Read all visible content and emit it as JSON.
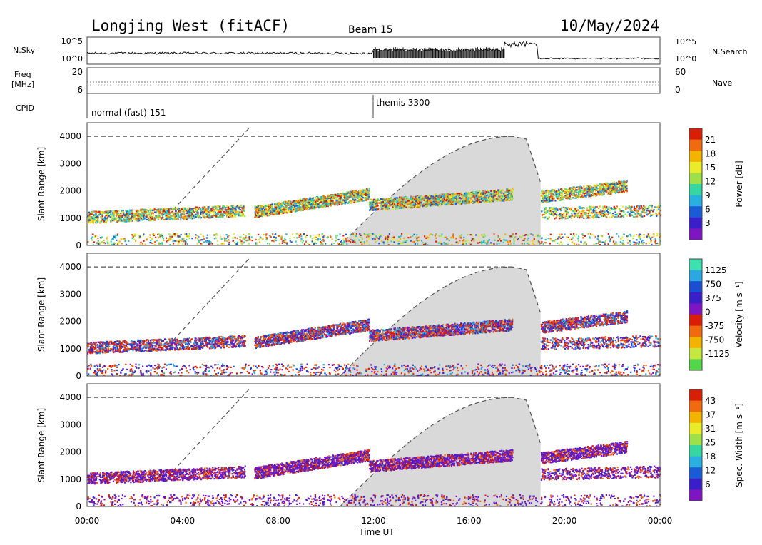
{
  "header": {
    "title": "Longjing West (fitACF)",
    "beam": "Beam 15",
    "date": "10/May/2024"
  },
  "strip": {
    "nsky_label": "N.Sky",
    "nsearch_label": "N.Search",
    "freq_label_line1": "Freq",
    "freq_label_line2": "[MHz]",
    "nave_label": "Nave",
    "cpid_label": "CPID",
    "noise_ticks_left": [
      "10^5",
      "10^0"
    ],
    "noise_ticks_right": [
      "10^5",
      "10^0"
    ],
    "freq_ticks": [
      "20",
      "6"
    ],
    "nave_ticks": [
      "60",
      "0"
    ],
    "cpid_segments": [
      {
        "label": "normal (fast) 151",
        "start_hour": 0
      },
      {
        "label": "themis 3300",
        "start_hour": 11.9
      }
    ]
  },
  "chart_data": [
    {
      "type": "heatmap",
      "name": "power",
      "ylabel": "Slant Range [km]",
      "xlabel": "",
      "ylim": [
        0,
        4500
      ],
      "yticks": [
        "0",
        "1000",
        "2000",
        "3000",
        "4000"
      ],
      "colorbar_label": "Power [dB]",
      "colorbar_ticks": [
        "21",
        "18",
        "15",
        "12",
        "9",
        "6",
        "3"
      ],
      "colorbar_colors": [
        "#d81e05",
        "#f06a10",
        "#f2b400",
        "#e8ec2a",
        "#9ee04a",
        "#36d6a0",
        "#2ab0e0",
        "#1c5bd6",
        "#3a1ec8",
        "#7d16c2"
      ],
      "scatter_color_order": [
        "#d81e05",
        "#f06a10",
        "#f2b400",
        "#e8ec2a",
        "#9ee04a",
        "#36d6a0",
        "#2ab0e0",
        "#1c5bd6"
      ]
    },
    {
      "type": "heatmap",
      "name": "velocity",
      "ylabel": "Slant Range [km]",
      "xlabel": "",
      "ylim": [
        0,
        4500
      ],
      "yticks": [
        "0",
        "1000",
        "2000",
        "3000",
        "4000"
      ],
      "colorbar_label": "Velocity [m s⁻¹]",
      "colorbar_ticks": [
        "1125",
        "750",
        "375",
        "0",
        "-375",
        "-750",
        "-1125"
      ],
      "colorbar_colors": [
        "#3fe0b0",
        "#2aa8e0",
        "#1a4fd0",
        "#3a1ec8",
        "#7d16c2",
        "#d81e05",
        "#f06a10",
        "#f2b400",
        "#c6e640",
        "#53d64a"
      ],
      "scatter_color_order": [
        "#d81e05",
        "#e8340a",
        "#7d16c2",
        "#3a1ec8",
        "#1a4fd0",
        "#2aa8e0",
        "#f06a10"
      ]
    },
    {
      "type": "heatmap",
      "name": "spectral_width",
      "ylabel": "Slant Range [km]",
      "xlabel": "Time UT",
      "ylim": [
        0,
        4500
      ],
      "yticks": [
        "0",
        "1000",
        "2000",
        "3000",
        "4000"
      ],
      "xticks": [
        "00:00",
        "04:00",
        "08:00",
        "12:00",
        "16:00",
        "20:00",
        "00:00"
      ],
      "x_range_hours": [
        0,
        24
      ],
      "colorbar_label": "Spec. Width [m s⁻¹]",
      "colorbar_ticks": [
        "43",
        "37",
        "31",
        "25",
        "18",
        "12",
        "6"
      ],
      "colorbar_colors": [
        "#d81e05",
        "#f06a10",
        "#f2b400",
        "#e8ec2a",
        "#9ee04a",
        "#36d6a0",
        "#2ab0e0",
        "#1c5bd6",
        "#3a1ec8",
        "#7d16c2"
      ],
      "scatter_color_order": [
        "#7d16c2",
        "#6a18c8",
        "#3a1ec8",
        "#5a1ed0",
        "#d81e05",
        "#f06a10"
      ]
    }
  ],
  "colors": {
    "groundscatter": "#d9d9d9",
    "axis": "#444444"
  }
}
